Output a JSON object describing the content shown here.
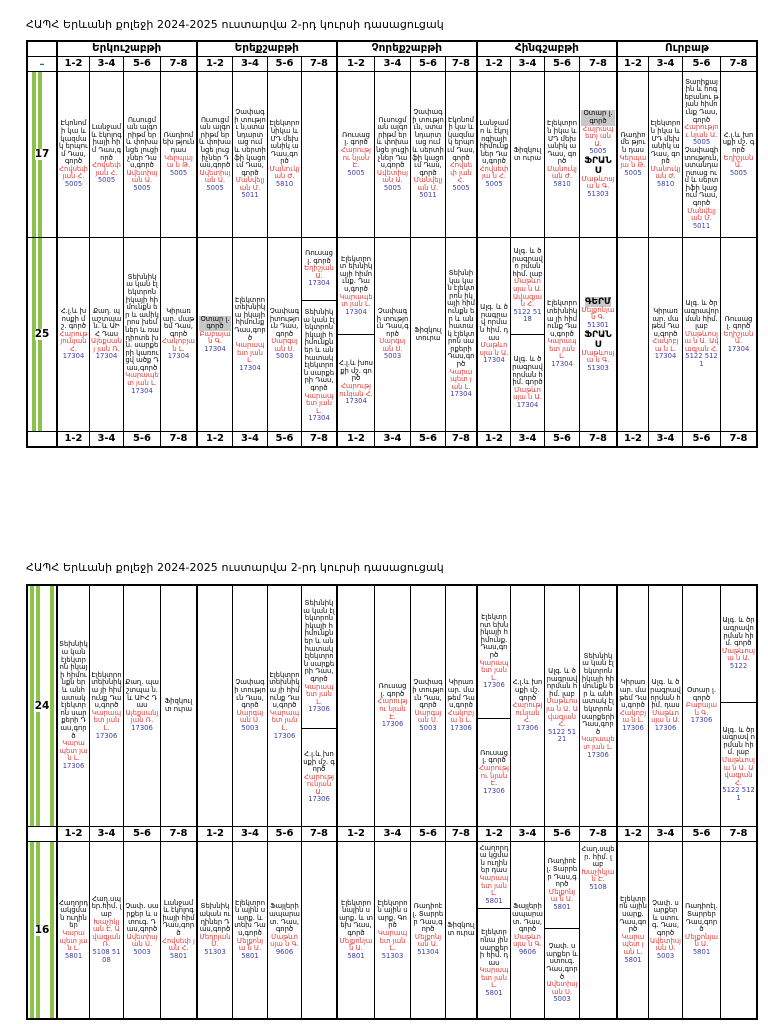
{
  "title": "ՀԱՊՀ Երևանի քոլեջի 2024-2025 ուստարվա 2-րդ կուրսի դասացուցակ",
  "minus": "–",
  "days": [
    "Երկուշաբթի",
    "Երեքշաբթի",
    "Չորեքշաբթի",
    "Հինգշաբթի",
    "Ուրբաթ"
  ],
  "slots": [
    "1-2",
    "3-4",
    "5-6",
    "7-8"
  ],
  "groups": {
    "g17": "17",
    "g25": "25",
    "g24": "24",
    "g16": "16"
  },
  "cells": {
    "c17_1_1": {
      "t": "Էկոնոմի կա և կազմակ երպում Դաս,գործ",
      "n": "Հովսեփ յան Հ.",
      "r": "5005"
    },
    "c17_1_2": {
      "t": "Լանջամ և էկոլոգ իայի հիմ Դաս,գործ",
      "n": "Հովսեփ յան Հ.",
      "r": "5005"
    },
    "c17_1_3": {
      "t": "Ուսուցման ալգորիթմ եր և փոխանցե լուցիչներ Դաս,գործ",
      "n": "Ավետիսյան Ա.",
      "r": "5005"
    },
    "c17_1_4": {
      "t": "Ռադիոմեխ թյուն դաս",
      "n": "Կերպայա ն Թ.",
      "r": "5005"
    },
    "c17_2_1": {
      "t": "Ուսուցման ալգորիթմ եր և փոխանցե լուցիչներ Դաս,գործ",
      "n": "Ավետիսյան Ա.",
      "r": "5005"
    },
    "c17_2_2": {
      "t": "Չափագի տությու ն,ստա նդարտաց ում և սերտիֆի կացում Դաս,գործ",
      "n": "Մանվելյան Մ.",
      "r": "5011"
    },
    "c17_2_3": {
      "t": "Էլեկտրո նիկա և ՄԴ մեխանիկ ա Դաս,գործ",
      "n": "Մանուկյ ան Ժ.",
      "r": "5810"
    },
    "c17_2_4": {
      "t": "",
      "n": "",
      "r": ""
    },
    "c17_3_1": {
      "t": "Ռուսաց լ. գործ",
      "n": "Հարությու նյան Է.",
      "r": "5005"
    },
    "c17_3_2": {
      "t": "Ուսուցման ալգորիթմ եր և փոխանցե լուցիչներ Դաս,գործ",
      "n": "Ավետիսյան Ա.",
      "r": "5005"
    },
    "c17_3_3": {
      "t": "Չափագի տություն, ստանդարտաց ում և սերտիֆի կացում Դաս,գործ",
      "n": "Մանվելյան Մ.",
      "r": "5011"
    },
    "c17_3_4": {
      "t": "Էկոնոմի կա և կազմակ երպում Դաս,գործ",
      "n": "Հովսեփ յան Հ.",
      "r": "5005"
    },
    "c17_4_1": {
      "t": "Լանջամո և էկոլոգիայի հիմունք ներ Դաս,գործ",
      "n": "Հովսեփյա ն Հ.",
      "r": "5005"
    },
    "c17_4_2": {
      "t": "Ֆիզկուլտ ուրա",
      "n": "",
      "r": ""
    },
    "c17_4_3": {
      "t": "Էլեկտրոն իկա և ՄԴ մեխանիկ ա Դաս, գործ",
      "n": "Մանուկյ ան Ժ.",
      "r": "5810"
    },
    "c17_4_4a": {
      "t": "Օտար լ. գործ",
      "n": "Հայրապետյ ան Ա.",
      "r": "5005"
    },
    "c17_4_4b": {
      "t": "ՖՐԱՆՍ",
      "n": "Մաթևոսյա ն Գ.",
      "r": "51303"
    },
    "c17_5_1": {
      "t": "Ռադիոմե թյուն դաս",
      "n": "Կերպայա ն Թ.",
      "r": "5005"
    },
    "c17_5_2": {
      "t": "Էլեկտրոն իկա և ՄԴ մեխանիկ ա Դաս, գործ",
      "n": "Մանուկյ ան Ժ.",
      "r": "5810"
    },
    "c17_5_3": {
      "t": "Տարիքային և հոգեբանու թյան հիմունք Դաս,գործ",
      "n": "Հարությու նյան Ա.",
      "r": "5005"
    },
    "c17_5_3b": {
      "t": "Չափագի տություն, ստանդարտաց ում և սերտիֆի կացում Դաս,գործ",
      "n": "Մանվելյան Մ.",
      "r": "5011"
    },
    "c17_5_4": {
      "t": "Հ.լ.և խոսքի մշ. գործ",
      "n": "Եղիշյան Ա.",
      "r": "5005"
    },
    "c25_1_1": {
      "t": "Հ.լ.և խոսքի մշ. գործ",
      "n": "Հարությունյան Հ.",
      "r": "17304"
    },
    "c25_1_2": {
      "t": "Քաղ. պաշտպա ն. և ԱԻՀ Դաս",
      "n": "Ալեքսանյ յան Ռ.",
      "r": "17304"
    },
    "c25_1_3": {
      "t": "Տեխնիկա կան էլեկտրոն իկայի հիմունքն եր և ամիկրոս խեմներ և ռադիոտե խն. սարքերի կառուցվ ածք Դաս,գործ",
      "n": "Կարապետ յան Լ.",
      "r": "17304"
    },
    "c25_1_4": {
      "t": "Կիրառ ար. մաթեմ Դաս,գործ",
      "n": "Հակոբյա ն Լ.",
      "r": "17304"
    },
    "c25_2_1": {
      "t": "Օտար լ. գործ",
      "n": "Բաբայան Գ.",
      "r": "17304"
    },
    "c25_2_2": {
      "t": "Էլեկտրո տեխնիկա իկայի հիմունք Դաս,գործ",
      "n": "Կարապետ յան Լ.",
      "r": "17304"
    },
    "c25_2_3": {
      "t": "Չափագ իտություն Դաս,գործ",
      "n": "Սարգսյան Ս.",
      "r": "5003"
    },
    "c25_2_4a": {
      "t": "Ռուսաց լ. գործ",
      "n": "Եղիշյան Ա.",
      "r": "17304"
    },
    "c25_2_4b": {
      "t": "Տեխնիկա կան էլեկտրոն իկայի հիմունքն եր և անհատակ էլեկտրոն սարքերի Դաս,գործ",
      "n": "Կարապետ յան Լ.",
      "r": "17304"
    },
    "c25_3_1a": {
      "t": "Էլեկտրոտ եխնիկայի հիմունք. Դաս,գործ",
      "n": "Կարապետ յան Լ.",
      "r": "17304"
    },
    "c25_3_1b": {
      "t": "Հ.լ.և խոսքի մշ. գործ",
      "n": "Հարությունյան Հ.",
      "r": "17304"
    },
    "c25_3_2": {
      "t": "Չափագի տություն Դաս,գործ",
      "n": "Սարգսյան Ս.",
      "r": "5003"
    },
    "c25_3_3": {
      "t": "Ֆիզկուլտուրա",
      "n": "",
      "r": ""
    },
    "c25_3_4": {
      "t": "Տեխնիկա կան էլեկտրոն իկայի հիմունքն եր և անհատակ էլեկտրոն սարքերի Դաս,գործ",
      "n": "Կարապետ յան Լ.",
      "r": "17304"
    },
    "c25_4_1": {
      "t": "Ալգ. և ծրագրավ որման հիմ. դաս",
      "n": "Մաթևոսյա ն Ա.",
      "r": "17304"
    },
    "c25_4_2a": {
      "t": "Ալգ. և ծրագրավո րման հիմ. լաբ",
      "n": "Մաթևոսյա ն Ա. Ավագյան Հ.",
      "r": "5122 5118"
    },
    "c25_4_2b": {
      "t": "Ալգ. և ծրագրավ որման հիմ. գործ",
      "n": "Մաթևոսյա ն Ա.",
      "r": "17304"
    },
    "c25_4_3": {
      "t": "Էլեկտրո տեխնիկա յի հիմունք Դաս,գործ",
      "n": "Կարապետ յան Լ.",
      "r": "17304"
    },
    "c25_4_4a": {
      "t": "ԳԵՐՄ",
      "n": "Մելքոնյա ն Գ.",
      "r": "51301"
    },
    "c25_4_4b": {
      "t": "ՖՐԱՆՍ",
      "n": "Մաթևոսյա ն Գ.",
      "r": "51303"
    },
    "c25_5_1": {
      "t": "",
      "n": "",
      "r": ""
    },
    "c25_5_2": {
      "t": "Կիրառ ար. մաթեմ Դաս,գործ",
      "n": "Հակոբյա ն Լ.",
      "r": "17304"
    },
    "c25_5_3": {
      "t": "Ալգ. և ծրագրավոր ման հիմ. լաբ",
      "n": "Մաթևոսյա ն Ա. Ավագյան Հ.",
      "r": "5122 5121"
    },
    "c25_5_4": {
      "t": "Ռուսաց լ. գործ",
      "n": "Եղիշյան Ա.",
      "r": "17304"
    },
    "c24_1_1": {
      "t": "Տեխնիկա կան էլեկտրոն իկայի հիմունքն եր և անհատակ էլեկտրոն սարքերի Դաս,գործ",
      "n": "Կարապետ յան Լ.",
      "r": "17306"
    },
    "c24_1_2": {
      "t": "Էլեկտրո տեխնիկա յի հիմունք Դաս,գործ",
      "n": "Կարապետ յան Լ.",
      "r": "17306"
    },
    "c24_1_3": {
      "t": "Քաղ. պաշտպա ն. և ԱԻՀ Դաս",
      "n": "Ալեքսանյ յան Ռ.",
      "r": "17306"
    },
    "c24_1_4": {
      "t": "Ֆիզկուլտ ուրա",
      "n": "",
      "r": ""
    },
    "c24_2_1": {
      "t": "",
      "n": "",
      "r": ""
    },
    "c24_2_2": {
      "t": "Չափագի տություն Դաս,գործ",
      "n": "Սարգսյան Ս.",
      "r": "5003"
    },
    "c24_2_3": {
      "t": "Էլեկտրո տեխնիկա յի հիմունք Դաս,գործ",
      "n": "Կարապետ յան Լ.",
      "r": "17306"
    },
    "c24_2_4a": {
      "t": "Տեխնիկա կան էլեկտրոն իկայի հիմունքն եր և անհատակ էլեկտրոն սարքերի Դաս,գործ",
      "n": "Կարապետ յան Լ.",
      "r": "17306"
    },
    "c24_2_4b": {
      "t": "Հ.լ.և խոսքի մշ. գործ",
      "n": "Հարությունյան Ա.",
      "r": "17306"
    },
    "c24_3_1": {
      "t": "",
      "n": "",
      "r": ""
    },
    "c24_3_2": {
      "t": "Ռուսաց լ. գործ",
      "n": "Հարությու նյան Է.",
      "r": "17306"
    },
    "c24_3_3": {
      "t": "Չափագի տություն Դաս,գործ",
      "n": "Սարգսյան Ս.",
      "r": "5003"
    },
    "c24_3_4": {
      "t": "Կիրառ ար. մաթեմ Դաս,գործ",
      "n": "Հակոբյա ն Լ.",
      "r": "17306"
    },
    "c24_4_1a": {
      "t": "Էլեկտրոտ եխնիկայի հիմունք. Դաս,գործ",
      "n": "Կարապետ յան Լ.",
      "r": "17306"
    },
    "c24_4_1b": {
      "t": "Ռուսաց լ. գործ",
      "n": "Հարությու նյան Է.",
      "r": "17306"
    },
    "c24_4_2": {
      "t": "Հ.լ.և խոսքի մշ. գործ",
      "n": "Հարությունյան Հ.",
      "r": "17306"
    },
    "c24_4_3": {
      "t": "Ալգ. և ծրագրավ որման հիմ. լաբ",
      "n": "Մաթևոսյա ն Ա. Ավագյան Հ.",
      "r": "5122 5121"
    },
    "c24_4_4": {
      "t": "Տեխնիկա կան էլեկտրոն իկայի հիմունքն եր և անհատակ էլեկտրոն սարքերի Դաս,գործ",
      "n": "Կարապետ յան Լ.",
      "r": "17306"
    },
    "c24_5_1": {
      "t": "Կիրառ ար. մաթեմ Դաս,գործ",
      "n": "Հակոբյա ն Լ.",
      "r": "17306"
    },
    "c24_5_2": {
      "t": "Ալգ. և ծրագրավ որման հիմ. դաս",
      "n": "Մաթևոսյա ն Ա.",
      "r": "17306"
    },
    "c24_5_3": {
      "t": "Օտար լ. գործ",
      "n": "Բաբայան Գ.",
      "r": "17306"
    },
    "c24_5_4a": {
      "t": "Ալգ. և ծրագրավո րման հիմ. գործ",
      "n": "Մաթևոսյա ն Ա.",
      "r": "5122"
    },
    "c24_5_4b": {
      "t": "Ալգ. և ծրագրավ որման հիմ. լաբ",
      "n": "Մաթևոսյա ն Ա. Ավագյան Հ.",
      "r": "5122 5121"
    },
    "c16_1_1": {
      "t": "Հաղորդ ակցման ուղիներ",
      "n": "Կարապետ յան Լ.",
      "r": "5801"
    },
    "c16_1_2": {
      "t": "Հաղ.սպ եր.հիմ. լաբ",
      "n": "Խաչիկյան Է. Ավագյան Ռ.",
      "r": "5108 5108"
    },
    "c16_1_3": {
      "t": "Չափ. սարքեր և ստուգ. Դաս,գործ",
      "n": "Ավետիսյան Ս.",
      "r": "5003"
    },
    "c16_1_4": {
      "t": "Լանջամ և էկոլոգ իայի հիմ Դաս,գործ",
      "n": "Հովսեփ յան Հ.",
      "r": "5801"
    },
    "c16_2_1": {
      "t": "Տեխնիկական ուղիներ Դաս,գործ",
      "n": "Մեղրյան Մ.",
      "r": "51303"
    },
    "c16_2_2": {
      "t": "Էլեկտրոն ային սարք. և տեխ Դաս,գործ",
      "n": "Մելքոնյա ն Ա.",
      "r": "5801"
    },
    "c16_2_3": {
      "t": "Ֆայլերի ապարա տ. Դաս,գործ",
      "n": "Մաթևոսյա ն Գ.",
      "r": "9606"
    },
    "c16_2_4": {
      "t": "",
      "n": "",
      "r": ""
    },
    "c16_3_1": {
      "t": "Էլեկտրոնային սարք. և տեխ Դաս,գործ",
      "n": "Մելքոնյան Ա.",
      "r": "5801"
    },
    "c16_3_2": {
      "t": "Էլեկտրոն ային սարք. Գործ",
      "n": "Կարապետ յան Լ.",
      "r": "51303"
    },
    "c16_3_3": {
      "t": "Ռադիոէլ. Տարրեր Դաս,գործ",
      "n": "Մելքոնյան Ա.",
      "r": "51304"
    },
    "c16_3_4": {
      "t": "Ֆիզկուլտ ուրա",
      "n": "",
      "r": ""
    },
    "c16_4_1a": {
      "t": "Հաղորդա կցման ուղիներ դաս",
      "n": "Կարապետ յան Լ.",
      "r": "5801"
    },
    "c16_4_1b": {
      "t": "Էլեկտրոնա յին սարքերի հիմ. դաս",
      "n": "Կարապետ յան Լ.",
      "r": "5801"
    },
    "c16_4_2": {
      "t": "Ֆայլերի ապարատ. Դաս,գործ",
      "n": "Մաթևոսյա ն Գ.",
      "r": "9606"
    },
    "c16_4_3a": {
      "t": "Ռադիոէլ. Տարրեր Դաս,գործ",
      "n": "Մելքոնյա ն Ա.",
      "r": "5801"
    },
    "c16_4_3b": {
      "t": "Չափ. սարքեր և ստուգ. Դաս,գործ",
      "n": "Ավետիսյան Ս.",
      "r": "5003"
    },
    "c16_4_4": {
      "t": "Հաղ.սպեր. հիմ. լաբ",
      "n": "Խաչիկյան Է.",
      "r": "5108"
    },
    "c16_5_1": {
      "t": "Էլեկտրոն ային սարք. Դաս,գործ",
      "n": "Կարապետ յան Լ.",
      "r": "5801"
    },
    "c16_5_2": {
      "t": "Չափ. սարքեր և ստուգ. Դաս,գործ",
      "n": "Ավետիսյան Ս.",
      "r": "5003"
    },
    "c16_5_3": {
      "t": "Ռադիոէլ. Տարրեր Դաս,գործ",
      "n": "Մելքոնյան Ա.",
      "r": "5801"
    },
    "c16_5_4": {
      "t": "",
      "n": "",
      "r": ""
    }
  }
}
